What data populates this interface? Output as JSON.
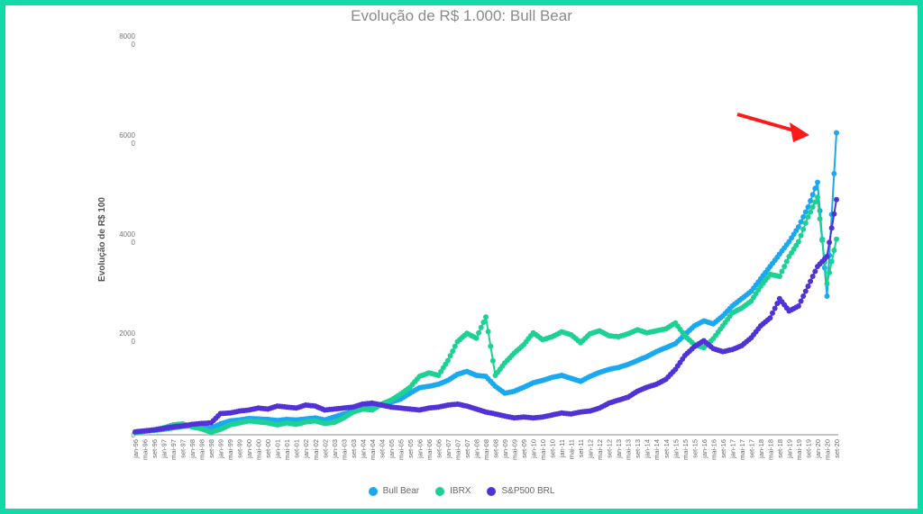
{
  "page": {
    "border_color": "#12d9a8"
  },
  "chart_data": {
    "type": "line",
    "title": "Evolução de R$ 1.000: Bull Bear",
    "xlabel": "",
    "ylabel": "Evolução de R$ 100",
    "ylim": [
      0,
      80000
    ],
    "yticks": [
      0,
      20000,
      40000,
      60000,
      80000
    ],
    "ytick_labels": [
      "0",
      "2000\n0",
      "4000\n0",
      "6000\n0",
      "8000\n0"
    ],
    "grid": false,
    "legend_position": "bottom",
    "categories": [
      "jan-96",
      "mai-96",
      "set-96",
      "jan-97",
      "mai-97",
      "set-97",
      "jan-98",
      "mai-98",
      "set-98",
      "jan-99",
      "mai-99",
      "set-99",
      "jan-00",
      "mai-00",
      "set-00",
      "jan-01",
      "mai-01",
      "set-01",
      "jan-02",
      "mai-02",
      "set-02",
      "jan-03",
      "mai-03",
      "set-03",
      "jan-04",
      "mai-04",
      "set-04",
      "jan-05",
      "mai-05",
      "set-05",
      "jan-06",
      "mai-06",
      "set-06",
      "jan-07",
      "mai-07",
      "set-07",
      "jan-08",
      "mai-08",
      "set-08",
      "jan-09",
      "mai-09",
      "set-09",
      "jan-10",
      "mai-10",
      "set-10",
      "jan-11",
      "mai-11",
      "set-11",
      "jan-12",
      "mai-12",
      "set-12",
      "jan-13",
      "mai-13",
      "set-13",
      "jan-14",
      "mai-14",
      "set-14",
      "jan-15",
      "mai-15",
      "set-15",
      "jan-16",
      "mai-16",
      "set-16",
      "jan-17",
      "mai-17",
      "set-17",
      "jan-18",
      "mai-18",
      "set-18",
      "jan-19",
      "mai-19",
      "set-19",
      "jan-20",
      "mai-20",
      "set-20"
    ],
    "series": [
      {
        "name": "Bull Bear",
        "color": "#1aa9f0",
        "values": [
          500,
          700,
          900,
          1100,
          1400,
          1700,
          1800,
          1500,
          1300,
          2200,
          2800,
          3000,
          3300,
          3200,
          3100,
          2900,
          3100,
          3000,
          3200,
          3400,
          3000,
          3600,
          4200,
          4700,
          5200,
          5600,
          6000,
          6600,
          7200,
          8400,
          9500,
          9800,
          10200,
          11000,
          12200,
          12800,
          12000,
          11800,
          9800,
          8400,
          8800,
          9600,
          10500,
          11000,
          11600,
          12000,
          11400,
          10800,
          11800,
          12600,
          13200,
          13600,
          14200,
          15000,
          15800,
          16800,
          17600,
          18400,
          20200,
          22000,
          23000,
          22400,
          24000,
          26000,
          27500,
          29000,
          31500,
          34000,
          36500,
          39000,
          42000,
          46000,
          51000,
          28000,
          61000
        ]
      },
      {
        "name": "IBRX",
        "color": "#1dd193",
        "values": [
          400,
          700,
          1000,
          1400,
          2000,
          2200,
          1600,
          1200,
          500,
          1100,
          2000,
          2400,
          2800,
          2600,
          2400,
          2000,
          2400,
          2100,
          2600,
          2800,
          2300,
          2500,
          3400,
          4600,
          5200,
          5000,
          6200,
          7000,
          8200,
          9600,
          11800,
          12500,
          12000,
          15000,
          18800,
          20500,
          19500,
          23800,
          12000,
          14500,
          16500,
          18200,
          20600,
          19200,
          19800,
          20800,
          20200,
          18600,
          20400,
          21000,
          20000,
          19800,
          20400,
          21200,
          20600,
          21000,
          21400,
          22600,
          20000,
          18200,
          17600,
          19400,
          22000,
          24600,
          25600,
          27000,
          30000,
          32400,
          32000,
          36000,
          39000,
          44000,
          48000,
          30500,
          39500
        ]
      },
      {
        "name": "S&P500 BRL",
        "color": "#5132d6",
        "values": [
          600,
          800,
          1000,
          1300,
          1600,
          1800,
          2100,
          2300,
          2400,
          4300,
          4400,
          4800,
          5000,
          5400,
          5200,
          5800,
          5600,
          5400,
          6000,
          5800,
          5000,
          5200,
          5400,
          5600,
          6200,
          6400,
          6000,
          5600,
          5400,
          5200,
          5000,
          5400,
          5600,
          6000,
          6200,
          5800,
          5200,
          4600,
          4200,
          3800,
          3400,
          3600,
          3400,
          3600,
          4000,
          4400,
          4200,
          4600,
          4800,
          5400,
          6400,
          7000,
          7600,
          8800,
          9600,
          10200,
          11200,
          13200,
          16000,
          17800,
          19000,
          17400,
          16800,
          17200,
          18000,
          19600,
          22000,
          23600,
          27500,
          25000,
          26000,
          30000,
          34000,
          36000,
          47500
        ]
      }
    ]
  },
  "legend": {
    "items": [
      {
        "label": "Bull Bear",
        "color": "#1aa9f0"
      },
      {
        "label": "IBRX",
        "color": "#1dd193"
      },
      {
        "label": "S&P500 BRL",
        "color": "#5132d6"
      }
    ]
  },
  "annotation": {
    "arrow_color": "#ff1a1a",
    "description": "red-arrow-pointing-to-bull-bear-peak"
  }
}
